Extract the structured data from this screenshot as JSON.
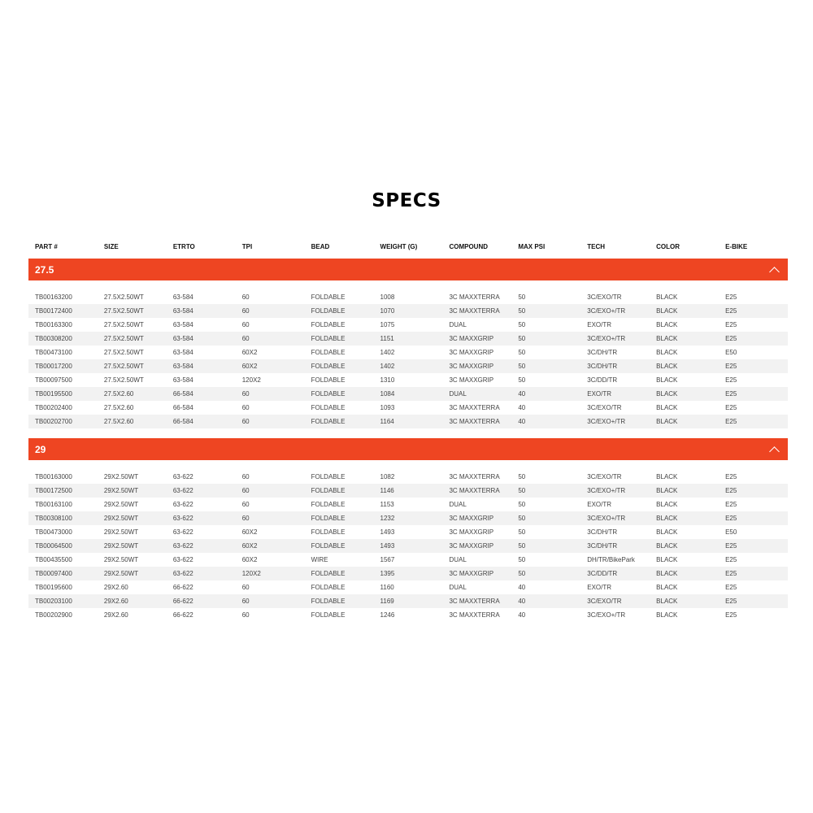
{
  "title": "SPECS",
  "headers": [
    "PART #",
    "SIZE",
    "ETRTO",
    "TPI",
    "BEAD",
    "WEIGHT (G)",
    "COMPOUND",
    "MAX PSI",
    "TECH",
    "COLOR",
    "E-BIKE"
  ],
  "accent_color": "#ee4522",
  "groups": [
    {
      "label": "27.5",
      "expanded": true,
      "rows": [
        [
          "TB00163200",
          "27.5X2.50WT",
          "63-584",
          "60",
          "FOLDABLE",
          "1008",
          "3C MAXXTERRA",
          "50",
          "3C/EXO/TR",
          "BLACK",
          "E25"
        ],
        [
          "TB00172400",
          "27.5X2.50WT",
          "63-584",
          "60",
          "FOLDABLE",
          "1070",
          "3C MAXXTERRA",
          "50",
          "3C/EXO+/TR",
          "BLACK",
          "E25"
        ],
        [
          "TB00163300",
          "27.5X2.50WT",
          "63-584",
          "60",
          "FOLDABLE",
          "1075",
          "DUAL",
          "50",
          "EXO/TR",
          "BLACK",
          "E25"
        ],
        [
          "TB00308200",
          "27.5X2.50WT",
          "63-584",
          "60",
          "FOLDABLE",
          "1151",
          "3C MAXXGRIP",
          "50",
          "3C/EXO+/TR",
          "BLACK",
          "E25"
        ],
        [
          "TB00473100",
          "27.5X2.50WT",
          "63-584",
          "60X2",
          "FOLDABLE",
          "1402",
          "3C MAXXGRIP",
          "50",
          "3C/DH/TR",
          "BLACK",
          "E50"
        ],
        [
          "TB00017200",
          "27.5X2.50WT",
          "63-584",
          "60X2",
          "FOLDABLE",
          "1402",
          "3C MAXXGRIP",
          "50",
          "3C/DH/TR",
          "BLACK",
          "E25"
        ],
        [
          "TB00097500",
          "27.5X2.50WT",
          "63-584",
          "120X2",
          "FOLDABLE",
          "1310",
          "3C MAXXGRIP",
          "50",
          "3C/DD/TR",
          "BLACK",
          "E25"
        ],
        [
          "TB00195500",
          "27.5X2.60",
          "66-584",
          "60",
          "FOLDABLE",
          "1084",
          "DUAL",
          "40",
          "EXO/TR",
          "BLACK",
          "E25"
        ],
        [
          "TB00202400",
          "27.5X2.60",
          "66-584",
          "60",
          "FOLDABLE",
          "1093",
          "3C MAXXTERRA",
          "40",
          "3C/EXO/TR",
          "BLACK",
          "E25"
        ],
        [
          "TB00202700",
          "27.5X2.60",
          "66-584",
          "60",
          "FOLDABLE",
          "1164",
          "3C MAXXTERRA",
          "40",
          "3C/EXO+/TR",
          "BLACK",
          "E25"
        ]
      ]
    },
    {
      "label": "29",
      "expanded": true,
      "rows": [
        [
          "TB00163000",
          "29X2.50WT",
          "63-622",
          "60",
          "FOLDABLE",
          "1082",
          "3C MAXXTERRA",
          "50",
          "3C/EXO/TR",
          "BLACK",
          "E25"
        ],
        [
          "TB00172500",
          "29X2.50WT",
          "63-622",
          "60",
          "FOLDABLE",
          "1146",
          "3C MAXXTERRA",
          "50",
          "3C/EXO+/TR",
          "BLACK",
          "E25"
        ],
        [
          "TB00163100",
          "29X2.50WT",
          "63-622",
          "60",
          "FOLDABLE",
          "1153",
          "DUAL",
          "50",
          "EXO/TR",
          "BLACK",
          "E25"
        ],
        [
          "TB00308100",
          "29X2.50WT",
          "63-622",
          "60",
          "FOLDABLE",
          "1232",
          "3C MAXXGRIP",
          "50",
          "3C/EXO+/TR",
          "BLACK",
          "E25"
        ],
        [
          "TB00473000",
          "29X2.50WT",
          "63-622",
          "60X2",
          "FOLDABLE",
          "1493",
          "3C MAXXGRIP",
          "50",
          "3C/DH/TR",
          "BLACK",
          "E50"
        ],
        [
          "TB00064500",
          "29X2.50WT",
          "63-622",
          "60X2",
          "FOLDABLE",
          "1493",
          "3C MAXXGRIP",
          "50",
          "3C/DH/TR",
          "BLACK",
          "E25"
        ],
        [
          "TB00435500",
          "29X2.50WT",
          "63-622",
          "60X2",
          "WIRE",
          "1567",
          "DUAL",
          "50",
          "DH/TR/BikePark",
          "BLACK",
          "E25"
        ],
        [
          "TB00097400",
          "29X2.50WT",
          "63-622",
          "120X2",
          "FOLDABLE",
          "1395",
          "3C MAXXGRIP",
          "50",
          "3C/DD/TR",
          "BLACK",
          "E25"
        ],
        [
          "TB00195600",
          "29X2.60",
          "66-622",
          "60",
          "FOLDABLE",
          "1160",
          "DUAL",
          "40",
          "EXO/TR",
          "BLACK",
          "E25"
        ],
        [
          "TB00203100",
          "29X2.60",
          "66-622",
          "60",
          "FOLDABLE",
          "1169",
          "3C MAXXTERRA",
          "40",
          "3C/EXO/TR",
          "BLACK",
          "E25"
        ],
        [
          "TB00202900",
          "29X2.60",
          "66-622",
          "60",
          "FOLDABLE",
          "1246",
          "3C MAXXTERRA",
          "40",
          "3C/EXO+/TR",
          "BLACK",
          "E25"
        ]
      ]
    }
  ]
}
